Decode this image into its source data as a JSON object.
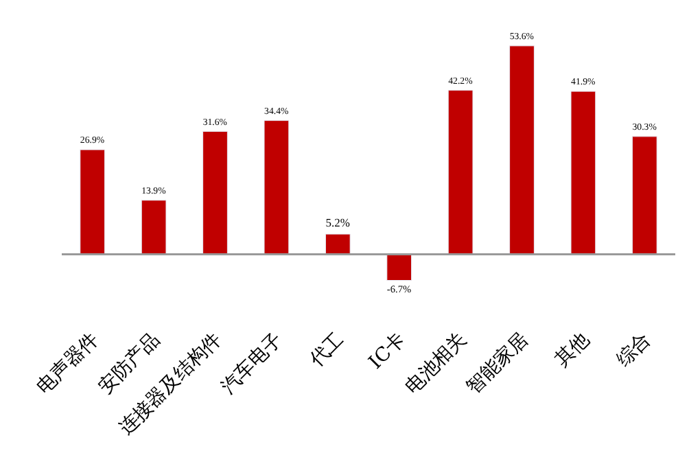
{
  "chart_data": {
    "type": "bar",
    "categories": [
      "电声器件",
      "安防产品",
      "连接器及结构件",
      "汽车电子",
      "代工",
      "IC卡",
      "电池相关",
      "智能家居",
      "其他",
      "综合"
    ],
    "values": [
      26.9,
      13.9,
      31.6,
      34.4,
      5.2,
      -6.7,
      42.2,
      53.6,
      41.9,
      30.3
    ],
    "value_labels": [
      "26.9%",
      "13.9%",
      "31.6%",
      "34.4%",
      "5.2%",
      "-6.7%",
      "42.2%",
      "53.6%",
      "41.9%",
      "30.3%"
    ],
    "color": "#c00000"
  }
}
